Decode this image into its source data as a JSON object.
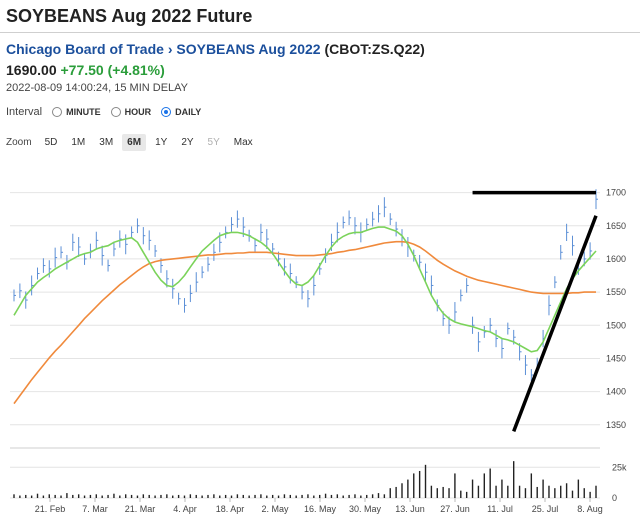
{
  "header": {
    "title": "SOYBEANS Aug 2022 Future",
    "exchange_link": "Chicago Board of Trade",
    "separator": "›",
    "contract_link": "SOYBEANS Aug 2022",
    "symbol": "(CBOT:ZS.Q22)",
    "price": "1690.00",
    "change": "+77.50 (+4.81%)",
    "timestamp": "2022-08-09 14:00:24, 15 MIN DELAY"
  },
  "interval": {
    "label": "Interval",
    "options": [
      "MINUTE",
      "HOUR",
      "DAILY"
    ],
    "selected": "DAILY"
  },
  "zoom": {
    "label": "Zoom",
    "options": [
      "5D",
      "1M",
      "3M",
      "6M",
      "1Y",
      "2Y",
      "5Y",
      "Max"
    ],
    "selected": "6M",
    "disabled": [
      "5Y"
    ]
  },
  "colors": {
    "bars": "#5b8fd6",
    "ma_short": "#7bd35a",
    "ma_long": "#f08a3c",
    "volume": "#222222",
    "annotation": "#000000",
    "grid": "#e4e4e4"
  },
  "chart_data": {
    "type": "line",
    "price_axis": {
      "ticks": [
        1350,
        1400,
        1450,
        1500,
        1550,
        1600,
        1650,
        1700
      ],
      "range": [
        1315,
        1725
      ],
      "side": "right"
    },
    "volume_axis": {
      "ticks": [
        "0",
        "25k"
      ],
      "range": [
        0,
        35000
      ]
    },
    "x_ticks": [
      "21. Feb",
      "7. Mar",
      "21. Mar",
      "4. Apr",
      "18. Apr",
      "2. May",
      "16. May",
      "30. May",
      "13. Jun",
      "27. Jun",
      "11. Jul",
      "25. Jul",
      "8. Aug"
    ],
    "price_close": [
      1545,
      1552,
      1538,
      1560,
      1578,
      1590,
      1585,
      1602,
      1610,
      1595,
      1625,
      1618,
      1600,
      1612,
      1628,
      1605,
      1590,
      1615,
      1630,
      1622,
      1640,
      1650,
      1635,
      1628,
      1612,
      1590,
      1570,
      1555,
      1540,
      1530,
      1548,
      1565,
      1580,
      1592,
      1610,
      1625,
      1640,
      1652,
      1660,
      1648,
      1635,
      1620,
      1640,
      1630,
      1615,
      1600,
      1588,
      1578,
      1565,
      1550,
      1540,
      1560,
      1585,
      1605,
      1625,
      1640,
      1655,
      1662,
      1650,
      1640,
      1652,
      1660,
      1668,
      1678,
      1660,
      1645,
      1632,
      1618,
      1605,
      1595,
      1580,
      1560,
      1530,
      1510,
      1500,
      1520,
      1545,
      1560,
      1500,
      1475,
      1490,
      1500,
      1480,
      1465,
      1495,
      1482,
      1460,
      1440,
      1425,
      1440,
      1480,
      1530,
      1565,
      1610,
      1640,
      1620,
      1585,
      1600,
      1612,
      1690
    ],
    "ma_short": [
      1515,
      1530,
      1545,
      1555,
      1565,
      1572,
      1578,
      1585,
      1590,
      1595,
      1600,
      1605,
      1608,
      1610,
      1615,
      1618,
      1620,
      1625,
      1628,
      1630,
      1632,
      1625,
      1610,
      1595,
      1580,
      1568,
      1560,
      1558,
      1565,
      1575,
      1588,
      1600,
      1612,
      1620,
      1628,
      1635,
      1638,
      1640,
      1640,
      1638,
      1635,
      1630,
      1625,
      1618,
      1608,
      1595,
      1582,
      1570,
      1562,
      1560,
      1565,
      1575,
      1590,
      1605,
      1618,
      1628,
      1634,
      1638,
      1640,
      1640,
      1643,
      1646,
      1648,
      1648,
      1645,
      1642,
      1635,
      1622,
      1605,
      1585,
      1565,
      1545,
      1530,
      1518,
      1510,
      1505,
      1502,
      1500,
      1498,
      1495,
      1492,
      1490,
      1485,
      1480,
      1478,
      1475,
      1470,
      1465,
      1460,
      1462,
      1475,
      1495,
      1515,
      1535,
      1555,
      1570,
      1582,
      1592,
      1602,
      1612
    ],
    "ma_long": [
      1382,
      1394,
      1406,
      1418,
      1429,
      1440,
      1451,
      1461,
      1470,
      1480,
      1490,
      1500,
      1510,
      1519,
      1528,
      1537,
      1545,
      1553,
      1561,
      1568,
      1575,
      1582,
      1588,
      1593,
      1596,
      1598,
      1599,
      1600,
      1601,
      1602,
      1603,
      1604,
      1605,
      1606,
      1606,
      1607,
      1608,
      1608,
      1609,
      1609,
      1610,
      1610,
      1610,
      1610,
      1609,
      1608,
      1607,
      1606,
      1605,
      1605,
      1605,
      1605,
      1606,
      1607,
      1608,
      1610,
      1611,
      1613,
      1614,
      1616,
      1618,
      1620,
      1622,
      1624,
      1625,
      1626,
      1626,
      1625,
      1622,
      1618,
      1612,
      1605,
      1598,
      1592,
      1587,
      1582,
      1578,
      1574,
      1571,
      1568,
      1566,
      1564,
      1562,
      1560,
      1558,
      1556,
      1554,
      1552,
      1550,
      1549,
      1548,
      1548,
      1548,
      1548,
      1548,
      1549,
      1549,
      1550,
      1550,
      1550
    ],
    "volume": [
      3000,
      2000,
      2500,
      2000,
      3500,
      2000,
      3000,
      2500,
      2000,
      4000,
      2500,
      3000,
      2000,
      2500,
      3000,
      2000,
      2500,
      3500,
      2000,
      3000,
      2500,
      2000,
      3000,
      2500,
      2000,
      2500,
      3000,
      2000,
      2500,
      2000,
      3000,
      2500,
      2000,
      2500,
      3000,
      2000,
      2500,
      2000,
      3000,
      2500,
      2000,
      2500,
      3000,
      2000,
      2500,
      2000,
      3000,
      2500,
      2000,
      2500,
      3000,
      2000,
      2500,
      3500,
      2500,
      3000,
      2000,
      2500,
      3000,
      2000,
      2500,
      3000,
      4000,
      3000,
      8000,
      9000,
      12000,
      15000,
      20000,
      22000,
      27000,
      10000,
      8000,
      9000,
      8000,
      20000,
      6000,
      5000,
      15000,
      10000,
      20000,
      24000,
      10000,
      15000,
      10000,
      30000,
      10000,
      8000,
      20000,
      9000,
      15000,
      10000,
      8000,
      10000,
      12000,
      6000,
      15000,
      8000,
      5000,
      10000
    ],
    "annotations": [
      {
        "kind": "resistance",
        "from": {
          "x_index": 78,
          "y": 1700
        },
        "to": {
          "x_index": 99,
          "y": 1700
        }
      },
      {
        "kind": "trend",
        "from": {
          "x_index": 85,
          "y": 1340
        },
        "to": {
          "x_index": 99,
          "y": 1665
        }
      }
    ]
  }
}
